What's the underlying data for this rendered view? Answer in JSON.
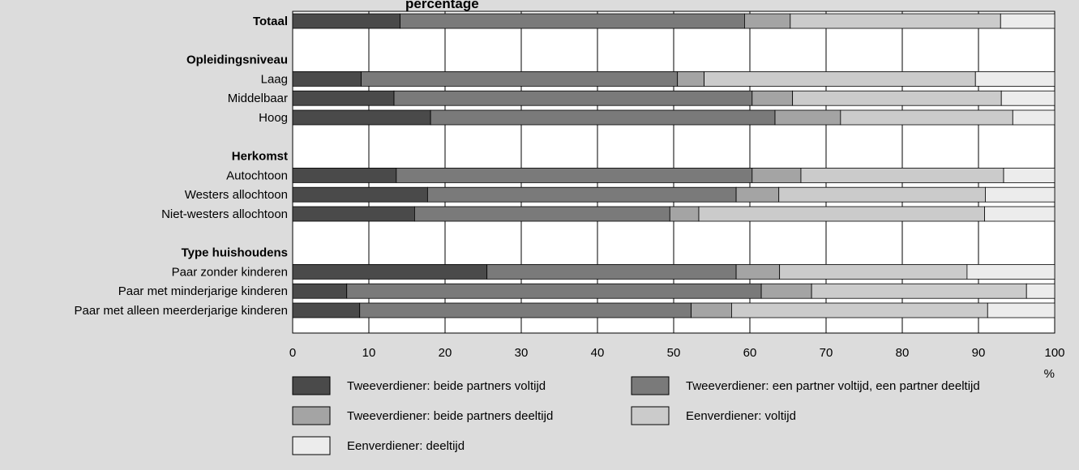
{
  "chart_data": {
    "type": "bar",
    "orientation": "horizontal",
    "stacked": true,
    "title": "percentage",
    "xlabel": "%",
    "xlim": [
      0,
      100
    ],
    "xticks": [
      0,
      10,
      20,
      30,
      40,
      50,
      60,
      70,
      80,
      90,
      100
    ],
    "grid": true,
    "legend_position": "bottom",
    "rows": [
      {
        "label": "Totaal",
        "bold": true,
        "bar": true
      },
      {
        "label": "",
        "bold": false,
        "bar": false
      },
      {
        "label": "Opleidingsniveau",
        "bold": true,
        "bar": false
      },
      {
        "label": "Laag",
        "bold": false,
        "bar": true
      },
      {
        "label": "Middelbaar",
        "bold": false,
        "bar": true
      },
      {
        "label": "Hoog",
        "bold": false,
        "bar": true
      },
      {
        "label": "",
        "bold": false,
        "bar": false
      },
      {
        "label": "Herkomst",
        "bold": true,
        "bar": false
      },
      {
        "label": "Autochtoon",
        "bold": false,
        "bar": true
      },
      {
        "label": "Westers allochtoon",
        "bold": false,
        "bar": true
      },
      {
        "label": "Niet-westers allochtoon",
        "bold": false,
        "bar": true
      },
      {
        "label": "",
        "bold": false,
        "bar": false
      },
      {
        "label": "Type huishoudens",
        "bold": true,
        "bar": false
      },
      {
        "label": "Paar zonder kinderen",
        "bold": false,
        "bar": true
      },
      {
        "label": "Paar met minderjarige kinderen",
        "bold": false,
        "bar": true
      },
      {
        "label": "Paar met alleen meerderjarige kinderen",
        "bold": false,
        "bar": true
      }
    ],
    "categories": [
      "Totaal",
      "Laag",
      "Middelbaar",
      "Hoog",
      "Autochtoon",
      "Westers allochtoon",
      "Niet-westers allochtoon",
      "Paar zonder kinderen",
      "Paar met minderjarige kinderen",
      "Paar met alleen meerderjarige kinderen"
    ],
    "series": [
      {
        "name": "Tweeverdiener: beide partners voltijd",
        "color": "#4a4a4a",
        "values": [
          14.1,
          9.0,
          13.3,
          18.1,
          13.6,
          17.7,
          16.0,
          25.5,
          7.1,
          8.8
        ]
      },
      {
        "name": "Tweeverdiener: een partner voltijd, een partner deeltijd",
        "color": "#7a7a7a",
        "values": [
          45.2,
          41.5,
          47.0,
          45.2,
          46.7,
          40.5,
          33.5,
          32.7,
          54.4,
          43.5
        ]
      },
      {
        "name": "Tweeverdiener: beide partners deeltijd",
        "color": "#a4a4a4",
        "values": [
          6.0,
          3.5,
          5.3,
          8.6,
          6.4,
          5.6,
          3.8,
          5.7,
          6.6,
          5.3
        ]
      },
      {
        "name": "Eenverdiener: voltijd",
        "color": "#cbcbcb",
        "values": [
          27.6,
          35.6,
          27.4,
          22.6,
          26.6,
          27.1,
          37.5,
          24.6,
          28.2,
          33.6
        ]
      },
      {
        "name": "Eenverdiener: deeltijd",
        "color": "#ececec",
        "values": [
          7.1,
          10.4,
          7.0,
          5.5,
          6.7,
          9.1,
          9.2,
          11.5,
          3.7,
          8.8
        ]
      }
    ]
  }
}
